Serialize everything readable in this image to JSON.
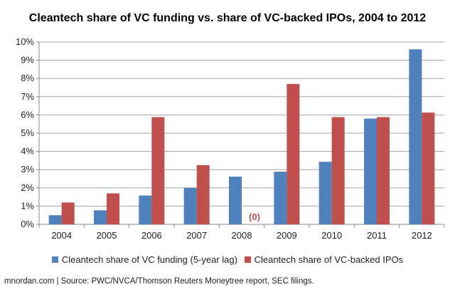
{
  "chart_data": {
    "type": "bar",
    "title": "Cleantech share of VC funding vs. share of VC-backed IPOs, 2004 to 2012",
    "categories": [
      "2004",
      "2005",
      "2006",
      "2007",
      "2008",
      "2009",
      "2010",
      "2011",
      "2012"
    ],
    "series": [
      {
        "name": "Cleantech share of VC funding (5-year lag)",
        "color": "#4F81BD",
        "values": [
          0.5,
          0.77,
          1.58,
          2.0,
          2.62,
          2.89,
          3.43,
          5.8,
          9.6
        ]
      },
      {
        "name": "Cleantech share of VC-backed IPOs",
        "color": "#C0504D",
        "values": [
          1.2,
          1.7,
          5.88,
          3.25,
          0,
          7.7,
          5.88,
          5.88,
          6.13
        ]
      }
    ],
    "ylim": [
      0,
      10
    ],
    "yticks": [
      "0%",
      "1%",
      "2%",
      "3%",
      "4%",
      "5%",
      "6%",
      "7%",
      "8%",
      "9%",
      "10%"
    ],
    "grid": true,
    "legend": "bottom",
    "annotations": [
      {
        "category": "2008",
        "series": 1,
        "text": "(0)"
      }
    ]
  },
  "footer": "mnordan.com | Source: PWC/NVCA/Thomson Reuters Moneytree report, SEC filings."
}
